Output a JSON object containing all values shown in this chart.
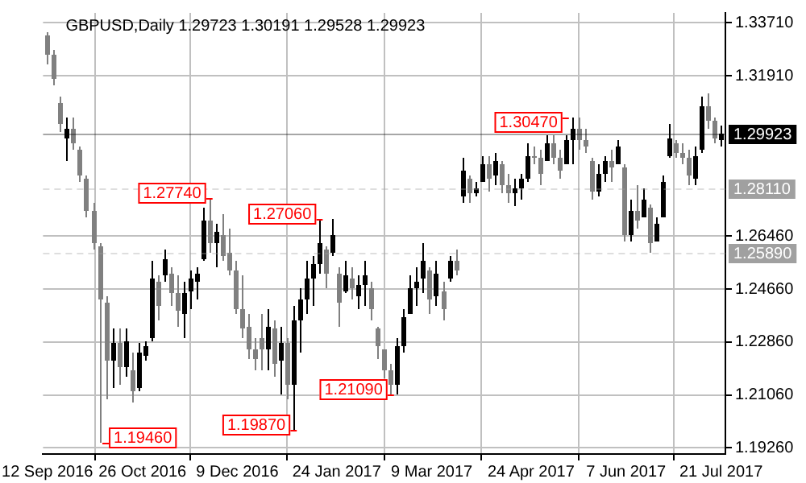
{
  "chart_data": {
    "type": "candlestick",
    "title": "GBPUSD,Daily 1.29723 1.30191 1.29528 1.29923",
    "x": [
      "2016-09-12",
      "2016-09-15",
      "2016-09-18",
      "2016-09-21",
      "2016-09-24",
      "2016-09-27",
      "2016-09-30",
      "2016-10-03",
      "2016-10-06",
      "2016-10-09",
      "2016-10-12",
      "2016-10-15",
      "2016-10-18",
      "2016-10-21",
      "2016-10-24",
      "2016-10-27",
      "2016-10-30",
      "2016-11-02",
      "2016-11-05",
      "2016-11-08",
      "2016-11-11",
      "2016-11-14",
      "2016-11-17",
      "2016-11-20",
      "2016-11-23",
      "2016-11-26",
      "2016-11-29",
      "2016-12-02",
      "2016-12-05",
      "2016-12-08",
      "2016-12-11",
      "2016-12-14",
      "2016-12-17",
      "2016-12-20",
      "2016-12-23",
      "2016-12-26",
      "2016-12-29",
      "2017-01-01",
      "2017-01-04",
      "2017-01-07",
      "2017-01-10",
      "2017-01-13",
      "2017-01-16",
      "2017-01-19",
      "2017-01-22",
      "2017-01-25",
      "2017-01-28",
      "2017-01-31",
      "2017-02-03",
      "2017-02-06",
      "2017-02-09",
      "2017-02-12",
      "2017-02-15",
      "2017-02-18",
      "2017-02-21",
      "2017-02-24",
      "2017-02-27",
      "2017-03-02",
      "2017-03-05",
      "2017-03-08",
      "2017-03-11",
      "2017-03-14",
      "2017-03-17",
      "2017-03-20",
      "2017-03-23",
      "2017-03-26",
      "2017-03-29",
      "2017-04-01",
      "2017-04-04",
      "2017-04-07",
      "2017-04-10",
      "2017-04-13",
      "2017-04-16",
      "2017-04-19",
      "2017-04-22",
      "2017-04-25",
      "2017-04-28",
      "2017-05-01",
      "2017-05-04",
      "2017-05-07",
      "2017-05-10",
      "2017-05-13",
      "2017-05-16",
      "2017-05-19",
      "2017-05-22",
      "2017-05-25",
      "2017-05-28",
      "2017-05-31",
      "2017-06-03",
      "2017-06-06",
      "2017-06-09",
      "2017-06-12",
      "2017-06-15",
      "2017-06-18",
      "2017-06-21",
      "2017-06-24",
      "2017-06-27",
      "2017-06-30",
      "2017-07-03",
      "2017-07-06",
      "2017-07-09",
      "2017-07-12",
      "2017-07-15",
      "2017-07-18",
      "2017-07-21"
    ],
    "ohlc": [
      [
        1.333,
        1.334,
        1.323,
        1.326
      ],
      [
        1.326,
        1.328,
        1.316,
        1.318
      ],
      [
        1.31,
        1.312,
        1.3,
        1.303
      ],
      [
        1.298,
        1.305,
        1.29,
        1.301
      ],
      [
        1.301,
        1.305,
        1.294,
        1.296
      ],
      [
        1.294,
        1.295,
        1.283,
        1.285
      ],
      [
        1.284,
        1.285,
        1.271,
        1.273
      ],
      [
        1.273,
        1.276,
        1.26,
        1.262
      ],
      [
        1.261,
        1.262,
        1.1946,
        1.243
      ],
      [
        1.242,
        1.244,
        1.209,
        1.222
      ],
      [
        1.222,
        1.233,
        1.213,
        1.228
      ],
      [
        1.228,
        1.233,
        1.214,
        1.22
      ],
      [
        1.22,
        1.233,
        1.217,
        1.229
      ],
      [
        1.219,
        1.225,
        1.208,
        1.212
      ],
      [
        1.213,
        1.228,
        1.212,
        1.225
      ],
      [
        1.224,
        1.229,
        1.222,
        1.227
      ],
      [
        1.23,
        1.256,
        1.229,
        1.25
      ],
      [
        1.249,
        1.251,
        1.236,
        1.241
      ],
      [
        1.251,
        1.26,
        1.249,
        1.257
      ],
      [
        1.252,
        1.254,
        1.241,
        1.245
      ],
      [
        1.245,
        1.251,
        1.234,
        1.239
      ],
      [
        1.238,
        1.249,
        1.23,
        1.245
      ],
      [
        1.246,
        1.253,
        1.24,
        1.25
      ],
      [
        1.249,
        1.254,
        1.243,
        1.252
      ],
      [
        1.257,
        1.274,
        1.256,
        1.27
      ],
      [
        1.27,
        1.2774,
        1.259,
        1.262
      ],
      [
        1.262,
        1.269,
        1.254,
        1.266
      ],
      [
        1.265,
        1.272,
        1.256,
        1.258
      ],
      [
        1.259,
        1.267,
        1.251,
        1.253
      ],
      [
        1.253,
        1.256,
        1.238,
        1.24
      ],
      [
        1.24,
        1.251,
        1.23,
        1.233
      ],
      [
        1.234,
        1.238,
        1.223,
        1.226
      ],
      [
        1.226,
        1.23,
        1.219,
        1.223
      ],
      [
        1.23,
        1.238,
        1.219,
        1.226
      ],
      [
        1.226,
        1.24,
        1.219,
        1.234
      ],
      [
        1.233,
        1.236,
        1.217,
        1.221
      ],
      [
        1.222,
        1.234,
        1.211,
        1.228
      ],
      [
        1.228,
        1.23,
        1.209,
        1.214
      ],
      [
        1.214,
        1.241,
        1.1987,
        1.236
      ],
      [
        1.236,
        1.247,
        1.225,
        1.243
      ],
      [
        1.243,
        1.256,
        1.238,
        1.25
      ],
      [
        1.25,
        1.258,
        1.241,
        1.255
      ],
      [
        1.255,
        1.2706,
        1.252,
        1.262
      ],
      [
        1.26,
        1.261,
        1.247,
        1.252
      ],
      [
        1.259,
        1.2706,
        1.258,
        1.265
      ],
      [
        1.252,
        1.254,
        1.234,
        1.242
      ],
      [
        1.246,
        1.256,
        1.245,
        1.251
      ],
      [
        1.25,
        1.254,
        1.243,
        1.247
      ],
      [
        1.244,
        1.251,
        1.24,
        1.248
      ],
      [
        1.248,
        1.256,
        1.241,
        1.251
      ],
      [
        1.247,
        1.249,
        1.236,
        1.24
      ],
      [
        1.233,
        1.234,
        1.223,
        1.227
      ],
      [
        1.226,
        1.226,
        1.216,
        1.219
      ],
      [
        1.219,
        1.221,
        1.2109,
        1.214
      ],
      [
        1.214,
        1.23,
        1.2109,
        1.227
      ],
      [
        1.227,
        1.24,
        1.225,
        1.237
      ],
      [
        1.238,
        1.251,
        1.238,
        1.247
      ],
      [
        1.247,
        1.254,
        1.241,
        1.249
      ],
      [
        1.25,
        1.262,
        1.245,
        1.256
      ],
      [
        1.253,
        1.254,
        1.238,
        1.243
      ],
      [
        1.244,
        1.256,
        1.241,
        1.252
      ],
      [
        1.246,
        1.249,
        1.236,
        1.24
      ],
      [
        1.25,
        1.258,
        1.249,
        1.256
      ],
      [
        1.256,
        1.26,
        1.251,
        1.253
      ],
      [
        1.278,
        1.291,
        1.276,
        1.287
      ],
      [
        1.284,
        1.285,
        1.276,
        1.279
      ],
      [
        1.279,
        1.283,
        1.278,
        1.281
      ],
      [
        1.283,
        1.292,
        1.283,
        1.289
      ],
      [
        1.289,
        1.292,
        1.28,
        1.284
      ],
      [
        1.285,
        1.293,
        1.282,
        1.29
      ],
      [
        1.289,
        1.29,
        1.279,
        1.282
      ],
      [
        1.282,
        1.286,
        1.276,
        1.279
      ],
      [
        1.279,
        1.284,
        1.275,
        1.281
      ],
      [
        1.281,
        1.286,
        1.277,
        1.284
      ],
      [
        1.284,
        1.296,
        1.283,
        1.292
      ],
      [
        1.292,
        1.295,
        1.289,
        1.291
      ],
      [
        1.291,
        1.294,
        1.282,
        1.286
      ],
      [
        1.29,
        1.299,
        1.29,
        1.296
      ],
      [
        1.296,
        1.299,
        1.289,
        1.291
      ],
      [
        1.291,
        1.294,
        1.284,
        1.287
      ],
      [
        1.289,
        1.299,
        1.289,
        1.297
      ],
      [
        1.297,
        1.3047,
        1.289,
        1.301
      ],
      [
        1.301,
        1.3047,
        1.294,
        1.297
      ],
      [
        1.297,
        1.301,
        1.293,
        1.295
      ],
      [
        1.29,
        1.291,
        1.277,
        1.28
      ],
      [
        1.28,
        1.289,
        1.278,
        1.286
      ],
      [
        1.286,
        1.292,
        1.283,
        1.29
      ],
      [
        1.29,
        1.294,
        1.283,
        1.288
      ],
      [
        1.289,
        1.297,
        1.289,
        1.295
      ],
      [
        1.288,
        1.289,
        1.263,
        1.265
      ],
      [
        1.265,
        1.277,
        1.263,
        1.273
      ],
      [
        1.273,
        1.282,
        1.267,
        1.27
      ],
      [
        1.271,
        1.281,
        1.271,
        1.277
      ],
      [
        1.274,
        1.2755,
        1.2589,
        1.262
      ],
      [
        1.263,
        1.271,
        1.263,
        1.269
      ],
      [
        1.271,
        1.285,
        1.271,
        1.283
      ],
      [
        1.292,
        1.303,
        1.291,
        1.298
      ],
      [
        1.296,
        1.297,
        1.291,
        1.293
      ],
      [
        1.293,
        1.296,
        1.289,
        1.291
      ],
      [
        1.291,
        1.294,
        1.282,
        1.285
      ],
      [
        1.284,
        1.295,
        1.282,
        1.292
      ],
      [
        1.294,
        1.312,
        1.293,
        1.309
      ],
      [
        1.309,
        1.313,
        1.301,
        1.304
      ],
      [
        1.304,
        1.305,
        1.296,
        1.298
      ],
      [
        1.29723,
        1.30191,
        1.29528,
        1.29923
      ]
    ],
    "colors": [
      "#808080",
      "#808080",
      "#808080",
      "#000000",
      "#808080",
      "#808080",
      "#808080",
      "#808080",
      "#808080",
      "#808080",
      "#000000",
      "#808080",
      "#000000",
      "#808080",
      "#000000",
      "#000000",
      "#000000",
      "#808080",
      "#000000",
      "#808080",
      "#808080",
      "#000000",
      "#000000",
      "#000000",
      "#000000",
      "#808080",
      "#000000",
      "#808080",
      "#808080",
      "#808080",
      "#808080",
      "#808080",
      "#808080",
      "#808080",
      "#000000",
      "#808080",
      "#000000",
      "#808080",
      "#000000",
      "#000000",
      "#000000",
      "#000000",
      "#000000",
      "#808080",
      "#000000",
      "#808080",
      "#000000",
      "#808080",
      "#000000",
      "#000000",
      "#808080",
      "#808080",
      "#808080",
      "#808080",
      "#000000",
      "#000000",
      "#000000",
      "#000000",
      "#000000",
      "#808080",
      "#000000",
      "#808080",
      "#000000",
      "#808080",
      "#000000",
      "#808080",
      "#000000",
      "#000000",
      "#808080",
      "#000000",
      "#808080",
      "#808080",
      "#000000",
      "#000000",
      "#000000",
      "#808080",
      "#808080",
      "#000000",
      "#808080",
      "#808080",
      "#000000",
      "#000000",
      "#808080",
      "#808080",
      "#808080",
      "#000000",
      "#000000",
      "#808080",
      "#000000",
      "#808080",
      "#000000",
      "#808080",
      "#000000",
      "#808080",
      "#000000",
      "#000000",
      "#000000",
      "#808080",
      "#808080",
      "#808080",
      "#000000",
      "#000000",
      "#808080",
      "#808080",
      "#000000"
    ],
    "xlim": [
      "2016-09-10",
      "2017-07-23"
    ],
    "xticks": [
      {
        "value": "2016-09-12",
        "label": "12 Sep 2016"
      },
      {
        "value": "2016-10-26",
        "label": "26 Oct 2016"
      },
      {
        "value": "2016-12-09",
        "label": "9 Dec 2016"
      },
      {
        "value": "2017-01-24",
        "label": "24 Jan 2017"
      },
      {
        "value": "2017-03-09",
        "label": "9 Mar 2017"
      },
      {
        "value": "2017-04-24",
        "label": "24 Apr 2017"
      },
      {
        "value": "2017-06-07",
        "label": "7 Jun 2017"
      },
      {
        "value": "2017-07-21",
        "label": "21 Jul 2017"
      }
    ],
    "ylim": [
      1.1905,
      1.3405
    ],
    "yticks": [
      {
        "value": 1.1926,
        "label": "1.19260"
      },
      {
        "value": 1.2106,
        "label": "1.21060"
      },
      {
        "value": 1.2286,
        "label": "1.22860"
      },
      {
        "value": 1.2466,
        "label": "1.24660"
      },
      {
        "value": 1.2646,
        "label": "1.26460"
      },
      {
        "value": 1.3191,
        "label": "1.31910"
      },
      {
        "value": 1.3371,
        "label": "1.33710"
      }
    ],
    "ref_lines": [
      {
        "axis": "y",
        "value": 1.29923,
        "label": "1.29923",
        "color": "#000000",
        "line_style": "solid"
      },
      {
        "axis": "y",
        "value": 1.2811,
        "label": "1.28110",
        "color": "#a0a0a0",
        "line_style": "dashed"
      },
      {
        "axis": "y",
        "value": 1.2589,
        "label": "1.25890",
        "color": "#a0a0a0",
        "line_style": "dashed"
      }
    ],
    "annotations": [
      {
        "text": "1.19460",
        "x": "2016-10-06",
        "y": 1.1946
      },
      {
        "text": "1.27740",
        "x": "2016-11-29",
        "y": 1.2774
      },
      {
        "text": "1.19870",
        "x": "2017-01-07",
        "y": 1.1987
      },
      {
        "text": "1.27060",
        "x": "2017-01-19",
        "y": 1.2706
      },
      {
        "text": "1.21090",
        "x": "2017-02-21",
        "y": 1.2109
      },
      {
        "text": "1.30470",
        "x": "2017-05-13",
        "y": 1.3047
      }
    ],
    "grid": true,
    "legend": false
  }
}
